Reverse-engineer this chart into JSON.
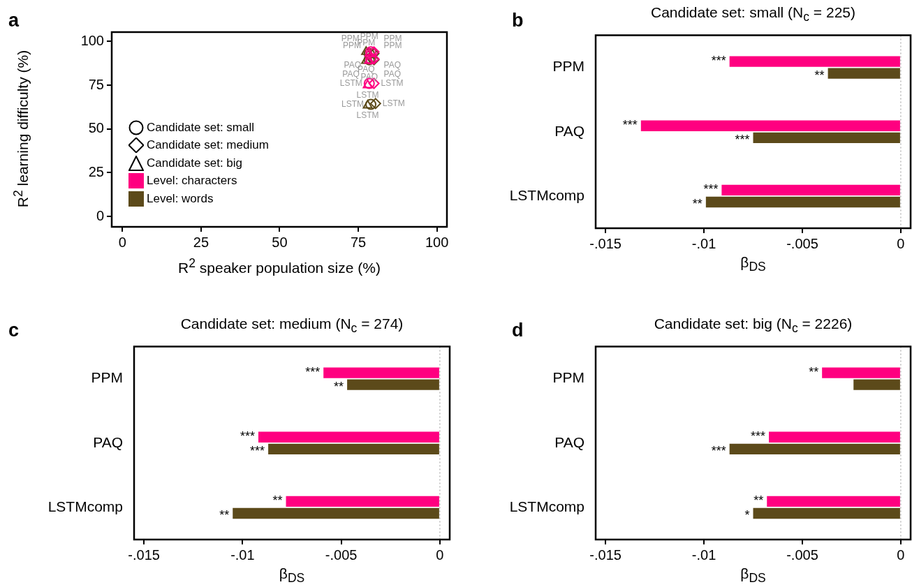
{
  "chart_data": [
    {
      "type": "scatter",
      "xlabel": "R$^{2}$ speaker population size (%)",
      "ylabel": "R$^{2}$ learning difficulty (%)",
      "xlim": [
        -3.4,
        103.2
      ],
      "ylim": [
        -5.9,
        105.3
      ],
      "xticks": [
        0,
        25,
        50,
        75,
        100
      ],
      "yticks": [
        0,
        25,
        50,
        75,
        100
      ],
      "annotations": [
        "a",
        "Candidate set: small",
        "Candidate set: medium",
        "Candidate set: big",
        "Level: characters",
        "Level: words"
      ],
      "series": [
        {
          "color": "#ff0080",
          "marker": "circle",
          "x": [
            79,
            79,
            78.5
          ],
          "values": [
            94,
            90,
            76
          ],
          "value_labels": [
            "PPM",
            "PAQ",
            "LSTM"
          ]
        },
        {
          "color": "#ff0080",
          "marker": "diamond",
          "x": [
            80,
            80,
            80
          ],
          "values": [
            94,
            90,
            76
          ],
          "value_labels": [
            "PPM",
            "PAQ",
            "LSTM"
          ]
        },
        {
          "color": "#ff0080",
          "marker": "triangle",
          "x": [
            78.5,
            78.5,
            78
          ],
          "values": [
            93,
            89,
            75
          ],
          "value_labels": [
            "PPM",
            "PAQ",
            "LSTM"
          ]
        },
        {
          "color": "#5c4a1a",
          "marker": "circle",
          "x": [
            78.5,
            78.5,
            79
          ],
          "values": [
            93,
            89.5,
            64
          ],
          "value_labels": [
            "PPM",
            "PAQ",
            "LSTM"
          ]
        },
        {
          "color": "#5c4a1a",
          "marker": "diamond",
          "x": [
            80,
            80,
            80.5
          ],
          "values": [
            93,
            89.5,
            64.5
          ],
          "value_labels": [
            "PPM",
            "PAQ",
            "LSTM"
          ]
        },
        {
          "color": "#5c4a1a",
          "marker": "triangle",
          "x": [
            77.5,
            77.5,
            78
          ],
          "values": [
            94,
            89,
            63.5
          ],
          "value_labels": [
            "PPM",
            "PAQ",
            "LSTM"
          ]
        }
      ]
    },
    {
      "type": "bar",
      "orientation": "horizontal",
      "title": "Candidate set: small (N$_{c}$ = 225)",
      "xlabel": "β$_{DS}$",
      "categories": [
        "PPM",
        "PAQ",
        "LSTMcomp"
      ],
      "xlim": [
        -0.0155,
        0.0005
      ],
      "xticks": [
        {
          "value": -0.015,
          "label": "-.015"
        },
        {
          "value": -0.01,
          "label": "-.01"
        },
        {
          "value": -0.005,
          "label": "-.005"
        },
        0
      ],
      "ref_lines": [
        {
          "axis": "x",
          "value": 0,
          "line_style": "dotted",
          "color": "#bbbbbb"
        }
      ],
      "annotations": [
        "b"
      ],
      "series": [
        {
          "color": "#ff0080",
          "values": [
            -0.0087,
            -0.0132,
            -0.0091
          ],
          "value_labels": [
            "***",
            "***",
            "***"
          ]
        },
        {
          "color": "#5c4a1a",
          "values": [
            -0.0037,
            -0.0075,
            -0.0099
          ],
          "value_labels": [
            "**",
            "***",
            "**"
          ]
        }
      ]
    },
    {
      "type": "bar",
      "orientation": "horizontal",
      "title": "Candidate set: medium (N$_{c}$ = 274)",
      "xlabel": "β$_{DS}$",
      "categories": [
        "PPM",
        "PAQ",
        "LSTMcomp"
      ],
      "xlim": [
        -0.0155,
        0.0005
      ],
      "xticks": [
        {
          "value": -0.015,
          "label": "-.015"
        },
        {
          "value": -0.01,
          "label": "-.01"
        },
        {
          "value": -0.005,
          "label": "-.005"
        },
        0
      ],
      "ref_lines": [
        {
          "axis": "x",
          "value": 0,
          "line_style": "dotted",
          "color": "#bbbbbb"
        }
      ],
      "annotations": [
        "c"
      ],
      "series": [
        {
          "color": "#ff0080",
          "values": [
            -0.0059,
            -0.0092,
            -0.0078
          ],
          "value_labels": [
            "***",
            "***",
            "**"
          ]
        },
        {
          "color": "#5c4a1a",
          "values": [
            -0.0047,
            -0.0087,
            -0.0105
          ],
          "value_labels": [
            "**",
            "***",
            "**"
          ]
        }
      ]
    },
    {
      "type": "bar",
      "orientation": "horizontal",
      "title": "Candidate set: big (N$_{c}$ = 2226)",
      "xlabel": "β$_{DS}$",
      "categories": [
        "PPM",
        "PAQ",
        "LSTMcomp"
      ],
      "xlim": [
        -0.0155,
        0.0005
      ],
      "xticks": [
        {
          "value": -0.015,
          "label": "-.015"
        },
        {
          "value": -0.01,
          "label": "-.01"
        },
        {
          "value": -0.005,
          "label": "-.005"
        },
        0
      ],
      "ref_lines": [
        {
          "axis": "x",
          "value": 0,
          "line_style": "dotted",
          "color": "#bbbbbb"
        }
      ],
      "annotations": [
        "d"
      ],
      "series": [
        {
          "color": "#ff0080",
          "values": [
            -0.004,
            -0.0067,
            -0.0068
          ],
          "value_labels": [
            "**",
            "***",
            "**"
          ]
        },
        {
          "color": "#5c4a1a",
          "values": [
            -0.0024,
            -0.0087,
            -0.0075
          ],
          "value_labels": [
            null,
            "***",
            "*"
          ]
        }
      ]
    }
  ]
}
